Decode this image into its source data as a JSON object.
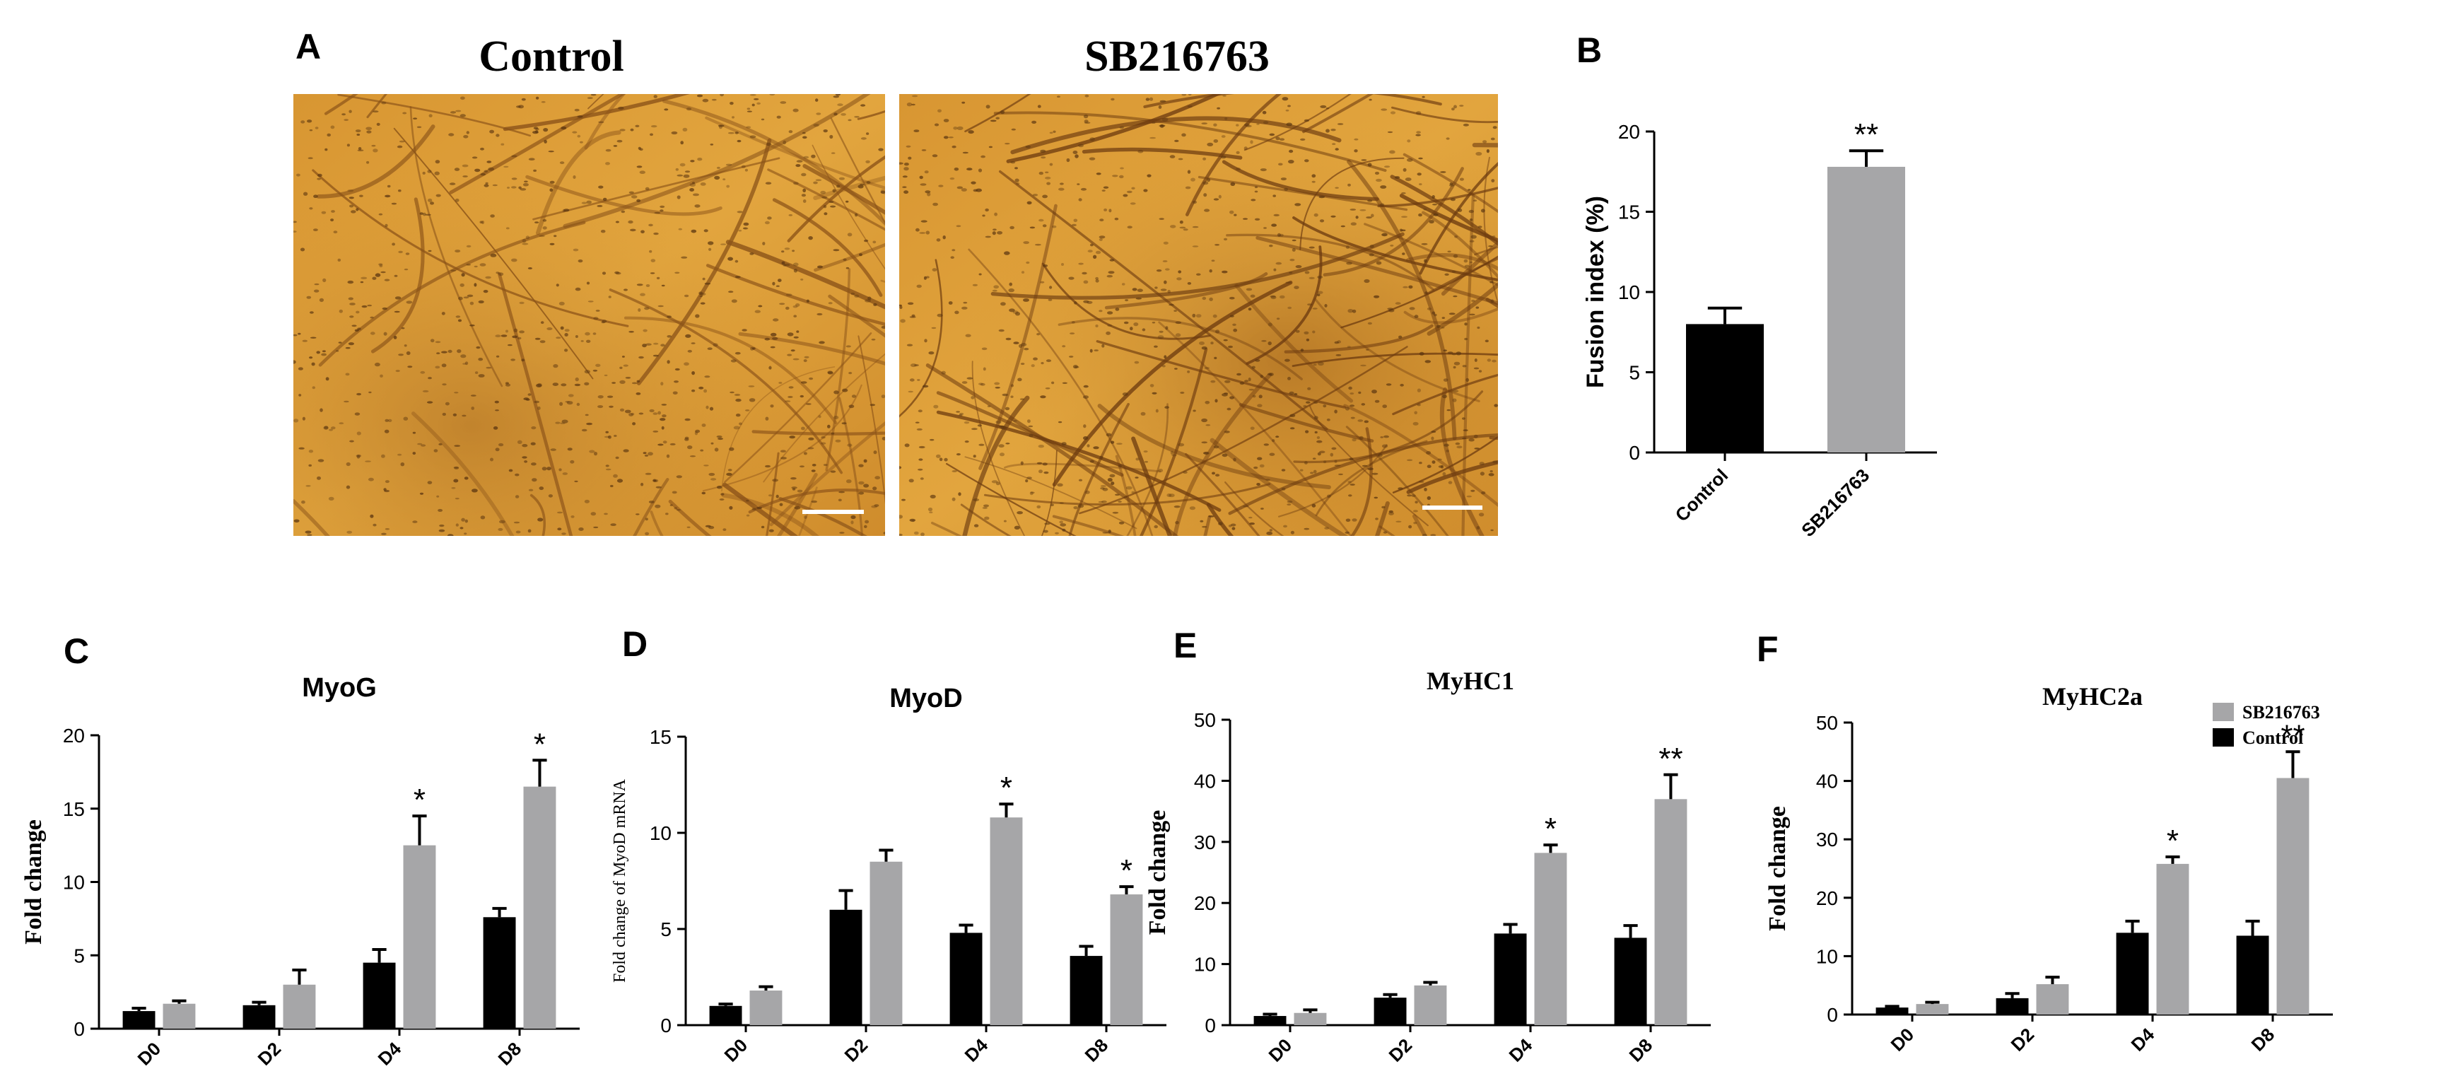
{
  "colors": {
    "control": "#000000",
    "treatment": "#a6a6a8",
    "micrograph_base": "#d99a34"
  },
  "legend": {
    "treatment_label": "SB216763",
    "control_label": "Control"
  },
  "panel_a": {
    "letter": "A",
    "images": [
      {
        "title": "Control"
      },
      {
        "title": "SB216763"
      }
    ]
  },
  "chart_data": [
    {
      "panel": "B",
      "type": "bar",
      "title": "",
      "categories": [
        "Control",
        "SB216763"
      ],
      "values": [
        8.0,
        17.8
      ],
      "errors": [
        1.0,
        1.0
      ],
      "significance": [
        "",
        "**"
      ],
      "ylabel": "Fusion index (%)",
      "ylim": [
        0,
        20
      ],
      "yticks": [
        0,
        5,
        10,
        15,
        20
      ]
    },
    {
      "panel": "C",
      "type": "bar",
      "title": "MyoG",
      "categories": [
        "D0",
        "D2",
        "D4",
        "D8"
      ],
      "series": [
        {
          "name": "Control",
          "values": [
            1.2,
            1.6,
            4.5,
            7.6
          ],
          "errors": [
            0.2,
            0.2,
            0.9,
            0.6
          ]
        },
        {
          "name": "SB216763",
          "values": [
            1.7,
            3.0,
            12.5,
            16.5
          ],
          "errors": [
            0.2,
            1.0,
            2.0,
            1.8
          ]
        }
      ],
      "significance": [
        "",
        "",
        "*",
        "*"
      ],
      "ylabel": "Fold change",
      "ylim": [
        0,
        20
      ],
      "yticks": [
        0,
        5,
        10,
        15,
        20
      ]
    },
    {
      "panel": "D",
      "type": "bar",
      "title": "MyoD",
      "categories": [
        "D0",
        "D2",
        "D4",
        "D8"
      ],
      "series": [
        {
          "name": "Control",
          "values": [
            1.0,
            6.0,
            4.8,
            3.6
          ],
          "errors": [
            0.1,
            1.0,
            0.4,
            0.5
          ]
        },
        {
          "name": "SB216763",
          "values": [
            1.8,
            8.5,
            10.8,
            6.8
          ],
          "errors": [
            0.2,
            0.6,
            0.7,
            0.4
          ]
        }
      ],
      "significance": [
        "",
        "",
        "*",
        "*"
      ],
      "ylabel": "Fold change of MyoD mRNA",
      "ylim": [
        0,
        15
      ],
      "yticks": [
        0,
        5,
        10,
        15
      ]
    },
    {
      "panel": "E",
      "type": "bar",
      "title": "MyHC1",
      "categories": [
        "D0",
        "D2",
        "D4",
        "D8"
      ],
      "series": [
        {
          "name": "Control",
          "values": [
            1.5,
            4.5,
            15.0,
            14.3
          ],
          "errors": [
            0.3,
            0.5,
            1.5,
            2.0
          ]
        },
        {
          "name": "SB216763",
          "values": [
            2.0,
            6.5,
            28.2,
            37.0
          ],
          "errors": [
            0.5,
            0.5,
            1.3,
            4.0
          ]
        }
      ],
      "significance": [
        "",
        "",
        "*",
        "**"
      ],
      "ylabel": "Fold change",
      "ylim": [
        0,
        50
      ],
      "yticks": [
        0,
        10,
        20,
        30,
        40,
        50
      ]
    },
    {
      "panel": "F",
      "type": "bar",
      "title": "MyHC2a",
      "categories": [
        "D0",
        "D2",
        "D4",
        "D8"
      ],
      "series": [
        {
          "name": "Control",
          "values": [
            1.2,
            2.8,
            14.0,
            13.5
          ],
          "errors": [
            0.2,
            0.8,
            2.0,
            2.5
          ]
        },
        {
          "name": "SB216763",
          "values": [
            1.8,
            5.2,
            25.8,
            40.5
          ],
          "errors": [
            0.3,
            1.2,
            1.2,
            4.5
          ]
        }
      ],
      "significance": [
        "",
        "",
        "*",
        "**"
      ],
      "ylabel": "Fold change",
      "ylim": [
        0,
        50
      ],
      "yticks": [
        0,
        10,
        20,
        30,
        40,
        50
      ]
    }
  ]
}
